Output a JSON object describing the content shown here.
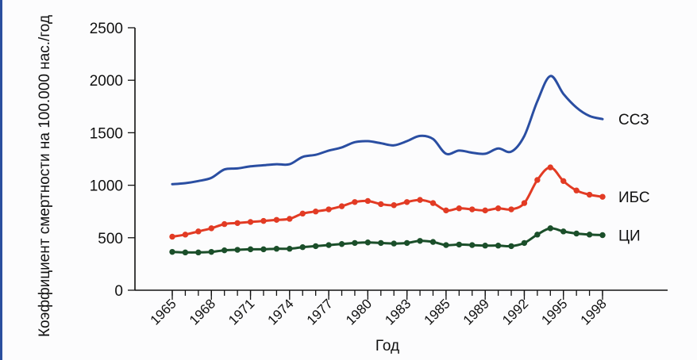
{
  "chart_data": {
    "type": "line",
    "title": "",
    "xlabel": "Год",
    "ylabel": "Коэффициент смертности на 100.000 нас./год",
    "ylim": [
      0,
      2500
    ],
    "yticks": [
      "0",
      "500",
      "1000",
      "1500",
      "2000",
      "2500"
    ],
    "xticks": [
      "1965",
      "1968",
      "1971",
      "1974",
      "1977",
      "1980",
      "1983",
      "1985",
      "1989",
      "1992",
      "1995",
      "1998"
    ],
    "grid": false,
    "x": [
      1965,
      1966,
      1967,
      1968,
      1969,
      1970,
      1971,
      1972,
      1973,
      1974,
      1975,
      1976,
      1977,
      1978,
      1979,
      1980,
      1981,
      1982,
      1983,
      1984,
      1985,
      1986,
      1987,
      1988,
      1989,
      1990,
      1991,
      1992,
      1993,
      1994,
      1995,
      1996,
      1997,
      1998
    ],
    "series": [
      {
        "name": "ССЗ",
        "color": "#2a4ea2",
        "markers": false,
        "values": [
          1010,
          1020,
          1040,
          1070,
          1150,
          1160,
          1180,
          1190,
          1200,
          1200,
          1270,
          1290,
          1330,
          1360,
          1410,
          1420,
          1400,
          1380,
          1420,
          1470,
          1440,
          1300,
          1330,
          1310,
          1300,
          1350,
          1320,
          1470,
          1800,
          2040,
          1870,
          1740,
          1660,
          1630
        ]
      },
      {
        "name": "ИБС",
        "color": "#e23b24",
        "markers": true,
        "values": [
          510,
          530,
          560,
          590,
          630,
          640,
          650,
          660,
          670,
          680,
          730,
          750,
          770,
          800,
          840,
          850,
          820,
          810,
          840,
          860,
          830,
          760,
          780,
          770,
          760,
          780,
          770,
          830,
          1050,
          1170,
          1040,
          950,
          910,
          890
        ]
      },
      {
        "name": "ЦИ",
        "color": "#1b4f2a",
        "markers": true,
        "values": [
          365,
          360,
          360,
          365,
          380,
          385,
          390,
          390,
          395,
          395,
          410,
          420,
          430,
          440,
          450,
          455,
          450,
          445,
          450,
          470,
          460,
          430,
          435,
          430,
          425,
          425,
          420,
          450,
          530,
          590,
          560,
          540,
          530,
          525
        ]
      }
    ]
  }
}
